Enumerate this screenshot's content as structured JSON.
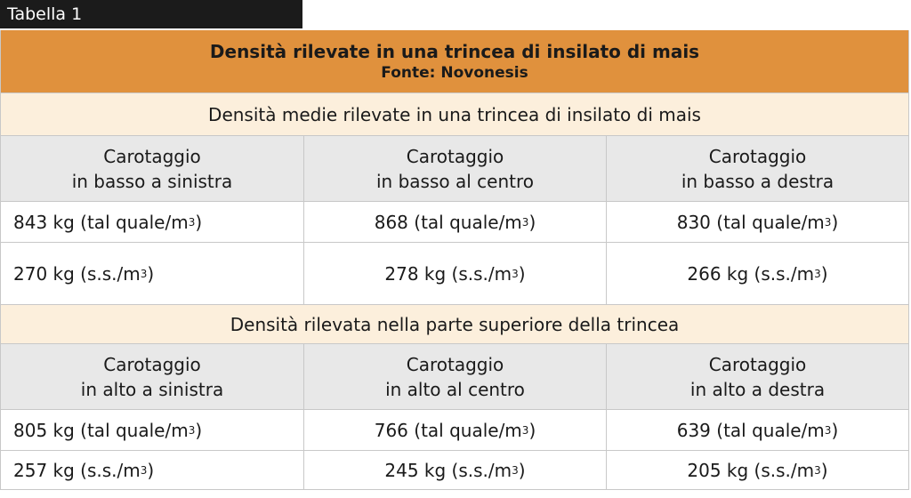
{
  "tab_label": "Tabella 1",
  "title": "Densità rilevate in una trincea di insilato di mais",
  "source": "Fonte: Novonesis",
  "unit_sup": "3",
  "colors": {
    "tab_bg": "#1b1b1b",
    "title_bg": "#e0913d",
    "section_bg": "#fcefdc",
    "header_bg": "#e8e8e8",
    "border": "#c8c8c8"
  },
  "section1": {
    "heading": "Densità medie rilevate in una trincea di insilato di mais",
    "headers": [
      {
        "line1": "Carotaggio",
        "line2": "in basso a sinistra"
      },
      {
        "line1": "Carotaggio",
        "line2": "in basso al centro"
      },
      {
        "line1": "Carotaggio",
        "line2": "in basso a destra"
      }
    ],
    "rows": [
      [
        {
          "text": "843 kg (tal quale/m",
          "close": ")"
        },
        {
          "text": "868 (tal quale/m",
          "close": ")"
        },
        {
          "text": "830 (tal quale/m",
          "close": ")"
        }
      ],
      [
        {
          "text": "270 kg (s.s./m",
          "close": ")"
        },
        {
          "text": "278 kg (s.s./m",
          "close": ")"
        },
        {
          "text": "266 kg (s.s./m",
          "close": ")"
        }
      ]
    ]
  },
  "section2": {
    "heading": "Densità rilevata nella parte superiore della trincea",
    "headers": [
      {
        "line1": "Carotaggio",
        "line2": "in alto a sinistra"
      },
      {
        "line1": "Carotaggio",
        "line2": "in alto al centro"
      },
      {
        "line1": "Carotaggio",
        "line2": "in alto a destra"
      }
    ],
    "rows": [
      [
        {
          "text": "805 kg (tal quale/m",
          "close": ")"
        },
        {
          "text": "766 (tal quale/m",
          "close": ")"
        },
        {
          "text": "639 (tal quale/m",
          "close": ")"
        }
      ],
      [
        {
          "text": "257 kg (s.s./m",
          "close": ")"
        },
        {
          "text": "245 kg (s.s./m",
          "close": ")"
        },
        {
          "text": "205 kg (s.s./m",
          "close": ")"
        }
      ]
    ]
  }
}
